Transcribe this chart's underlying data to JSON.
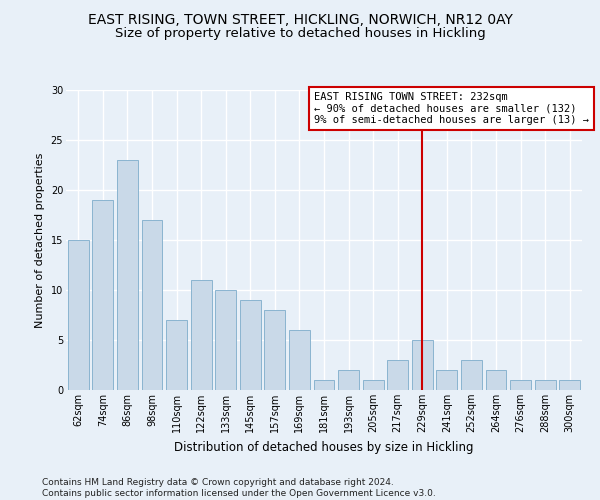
{
  "title": "EAST RISING, TOWN STREET, HICKLING, NORWICH, NR12 0AY",
  "subtitle": "Size of property relative to detached houses in Hickling",
  "xlabel": "Distribution of detached houses by size in Hickling",
  "ylabel": "Number of detached properties",
  "categories": [
    "62sqm",
    "74sqm",
    "86sqm",
    "98sqm",
    "110sqm",
    "122sqm",
    "133sqm",
    "145sqm",
    "157sqm",
    "169sqm",
    "181sqm",
    "193sqm",
    "205sqm",
    "217sqm",
    "229sqm",
    "241sqm",
    "252sqm",
    "264sqm",
    "276sqm",
    "288sqm",
    "300sqm"
  ],
  "values": [
    15,
    19,
    23,
    17,
    7,
    11,
    10,
    9,
    8,
    6,
    1,
    2,
    1,
    3,
    5,
    2,
    3,
    2,
    1,
    1,
    1
  ],
  "bar_color": "#c9d9e8",
  "bar_edge_color": "#8ab4d0",
  "background_color": "#e8f0f8",
  "grid_color": "#ffffff",
  "vline_x_index": 14,
  "vline_color": "#cc0000",
  "annotation_text": "EAST RISING TOWN STREET: 232sqm\n← 90% of detached houses are smaller (132)\n9% of semi-detached houses are larger (13) →",
  "annotation_box_color": "#ffffff",
  "annotation_box_edge_color": "#cc0000",
  "footer_text": "Contains HM Land Registry data © Crown copyright and database right 2024.\nContains public sector information licensed under the Open Government Licence v3.0.",
  "ylim": [
    0,
    30
  ],
  "yticks": [
    0,
    5,
    10,
    15,
    20,
    25,
    30
  ],
  "title_fontsize": 10,
  "subtitle_fontsize": 9.5,
  "xlabel_fontsize": 8.5,
  "ylabel_fontsize": 8,
  "tick_fontsize": 7,
  "annotation_fontsize": 7.5,
  "footer_fontsize": 6.5
}
